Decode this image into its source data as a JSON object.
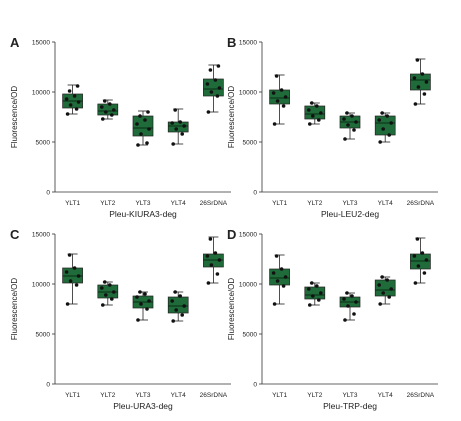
{
  "figure": {
    "box_color": "#1f6b3a",
    "point_color": "#111111"
  },
  "chart_data": [
    {
      "type": "box",
      "panel_letter": "A",
      "title": "",
      "xlabel": "Pleu-KIURA3-deg",
      "ylabel": "Fluorescence/OD",
      "ylim": [
        0,
        15000
      ],
      "yticks": [
        "0",
        "5000",
        "10000",
        "15000"
      ],
      "categories": [
        "YLT1",
        "YLT2",
        "YLT3",
        "YLT4",
        "26SrDNA"
      ],
      "boxes": [
        {
          "min": 7800,
          "q1": 8400,
          "median": 9100,
          "q3": 9800,
          "max": 10700,
          "points": [
            7800,
            8300,
            8700,
            9000,
            9300,
            9600,
            10100,
            10600
          ]
        },
        {
          "min": 7300,
          "q1": 7700,
          "median": 8100,
          "q3": 8800,
          "max": 9200,
          "points": [
            7300,
            7700,
            8000,
            8200,
            8500,
            8800,
            9100
          ]
        },
        {
          "min": 4700,
          "q1": 5600,
          "median": 6400,
          "q3": 7600,
          "max": 8100,
          "points": [
            4700,
            4900,
            5800,
            6300,
            6800,
            7200,
            7600,
            8000
          ]
        },
        {
          "min": 4800,
          "q1": 6000,
          "median": 6600,
          "q3": 7000,
          "max": 8300,
          "points": [
            4800,
            5800,
            6300,
            6600,
            6900,
            7000,
            8200
          ]
        },
        {
          "min": 8000,
          "q1": 9600,
          "median": 10300,
          "q3": 11300,
          "max": 12700,
          "points": [
            8000,
            9600,
            10000,
            10400,
            10800,
            11200,
            12200,
            12600
          ]
        }
      ]
    },
    {
      "type": "box",
      "panel_letter": "B",
      "title": "",
      "xlabel": "Pleu-LEU2-deg",
      "ylabel": "Fluorescence/OD",
      "ylim": [
        0,
        15000
      ],
      "yticks": [
        "0",
        "5000",
        "10000",
        "15000"
      ],
      "categories": [
        "YLT1",
        "YLT2",
        "YLT3",
        "YLT4",
        "26SrDNA"
      ],
      "boxes": [
        {
          "min": 6800,
          "q1": 8800,
          "median": 9400,
          "q3": 10200,
          "max": 11700,
          "points": [
            6800,
            8600,
            9100,
            9500,
            9900,
            10200,
            11600
          ]
        },
        {
          "min": 6800,
          "q1": 7300,
          "median": 7800,
          "q3": 8600,
          "max": 8900,
          "points": [
            6800,
            7200,
            7600,
            7900,
            8200,
            8600,
            8900
          ]
        },
        {
          "min": 5300,
          "q1": 6400,
          "median": 7000,
          "q3": 7600,
          "max": 7900,
          "points": [
            5300,
            6200,
            6700,
            7000,
            7300,
            7600,
            7900
          ]
        },
        {
          "min": 5000,
          "q1": 5700,
          "median": 6900,
          "q3": 7600,
          "max": 7900,
          "points": [
            5000,
            5700,
            6300,
            6900,
            7200,
            7600,
            7900
          ]
        },
        {
          "min": 8800,
          "q1": 10200,
          "median": 11200,
          "q3": 11800,
          "max": 13300,
          "points": [
            8800,
            9800,
            10500,
            11000,
            11400,
            11800,
            13200
          ]
        }
      ]
    },
    {
      "type": "box",
      "panel_letter": "C",
      "title": "",
      "xlabel": "Pleu-URA3-deg",
      "ylabel": "Fluorescence/OD",
      "ylim": [
        0,
        15000
      ],
      "yticks": [
        "0",
        "5000",
        "10000",
        "15000"
      ],
      "categories": [
        "YLT1",
        "YLT2",
        "YLT3",
        "YLT4",
        "26SrDNA"
      ],
      "boxes": [
        {
          "min": 8000,
          "q1": 10100,
          "median": 10800,
          "q3": 11600,
          "max": 13000,
          "points": [
            8000,
            9900,
            10300,
            10800,
            11200,
            11600,
            12900
          ]
        },
        {
          "min": 7900,
          "q1": 8600,
          "median": 9200,
          "q3": 9900,
          "max": 10200,
          "points": [
            7900,
            8500,
            8900,
            9200,
            9600,
            9900,
            10200
          ]
        },
        {
          "min": 6400,
          "q1": 7600,
          "median": 8200,
          "q3": 8800,
          "max": 9200,
          "points": [
            6400,
            7500,
            8000,
            8300,
            8700,
            9000,
            9200
          ]
        },
        {
          "min": 6300,
          "q1": 7100,
          "median": 7800,
          "q3": 8700,
          "max": 9200,
          "points": [
            6300,
            6900,
            7400,
            7800,
            8300,
            8800,
            9200
          ]
        },
        {
          "min": 10100,
          "q1": 11700,
          "median": 12400,
          "q3": 13000,
          "max": 14700,
          "points": [
            10100,
            11000,
            11900,
            12400,
            12800,
            13100,
            14500
          ]
        }
      ]
    },
    {
      "type": "box",
      "panel_letter": "D",
      "title": "",
      "xlabel": "Pleu-TRP-deg",
      "ylabel": "Fluorescence/OD",
      "ylim": [
        0,
        15000
      ],
      "yticks": [
        "0",
        "5000",
        "10000",
        "15000"
      ],
      "categories": [
        "YLT1",
        "YLT2",
        "YLT3",
        "YLT4",
        "26SrDNA"
      ],
      "boxes": [
        {
          "min": 8000,
          "q1": 9900,
          "median": 10600,
          "q3": 11500,
          "max": 12900,
          "points": [
            8000,
            9800,
            10300,
            10700,
            11100,
            11500,
            12800
          ]
        },
        {
          "min": 7900,
          "q1": 8500,
          "median": 8900,
          "q3": 9700,
          "max": 10100,
          "points": [
            7900,
            8400,
            8800,
            9100,
            9500,
            9800,
            10100
          ]
        },
        {
          "min": 6400,
          "q1": 7700,
          "median": 8200,
          "q3": 8700,
          "max": 9100,
          "points": [
            6400,
            7000,
            7800,
            8200,
            8500,
            8800,
            9100
          ]
        },
        {
          "min": 8000,
          "q1": 8800,
          "median": 9400,
          "q3": 10400,
          "max": 10700,
          "points": [
            8000,
            8700,
            9100,
            9500,
            9900,
            10400,
            10700
          ]
        },
        {
          "min": 10100,
          "q1": 11500,
          "median": 12300,
          "q3": 13000,
          "max": 14600,
          "points": [
            10100,
            11100,
            11800,
            12400,
            12800,
            13100,
            14500
          ]
        }
      ]
    }
  ]
}
